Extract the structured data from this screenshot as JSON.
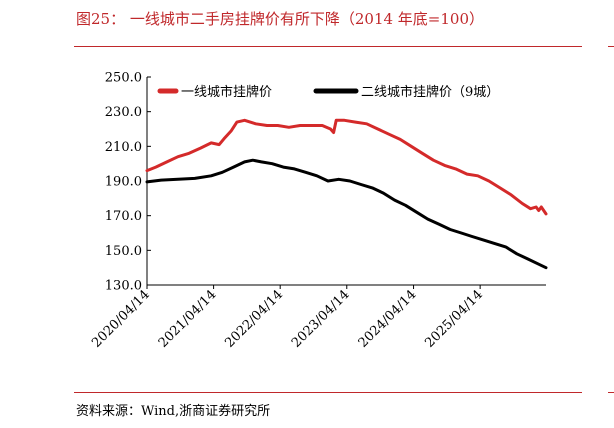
{
  "title": "图25：  一线城市二手房挂牌价有所下降（2014 年底=100）",
  "source": "资料来源：Wind,浙商证券研究所",
  "colors": {
    "accent": "#c0282b",
    "series1": "#d42a2a",
    "series2": "#000000"
  },
  "chart_data": {
    "type": "line",
    "title": "",
    "xlabel": "",
    "ylabel": "",
    "ylim": [
      130,
      250
    ],
    "yticks": [
      "250.0",
      "230.0",
      "210.0",
      "190.0",
      "170.0",
      "150.0",
      "130.0"
    ],
    "ytick_values": [
      250,
      230,
      210,
      190,
      170,
      150,
      130
    ],
    "xticks": [
      "2020/04/14",
      "2021/04/14",
      "2022/04/14",
      "2023/04/14",
      "2024/04/14",
      "2025/04/14"
    ],
    "xtick_values": [
      "2020-04-14",
      "2021-04-14",
      "2022-04-14",
      "2023-04-14",
      "2024-04-14",
      "2025-04-14"
    ],
    "xlim": [
      "2020-04-14",
      "2026-04-10"
    ],
    "grid": false,
    "legend_placement": "top",
    "series": [
      {
        "name": "一线城市挂牌价",
        "color": "#d42a2a",
        "points": [
          [
            "2020-04-14",
            196
          ],
          [
            "2020-06-01",
            198
          ],
          [
            "2020-08-01",
            201
          ],
          [
            "2020-10-01",
            204
          ],
          [
            "2020-12-01",
            206
          ],
          [
            "2021-02-01",
            209
          ],
          [
            "2021-04-01",
            212
          ],
          [
            "2021-05-15",
            211
          ],
          [
            "2021-06-15",
            215
          ],
          [
            "2021-07-20",
            219
          ],
          [
            "2021-08-20",
            224
          ],
          [
            "2021-10-01",
            225
          ],
          [
            "2021-12-01",
            223
          ],
          [
            "2022-02-01",
            222
          ],
          [
            "2022-04-01",
            222
          ],
          [
            "2022-06-01",
            221
          ],
          [
            "2022-08-01",
            222
          ],
          [
            "2022-10-01",
            222
          ],
          [
            "2022-12-01",
            222
          ],
          [
            "2023-01-15",
            220
          ],
          [
            "2023-02-01",
            218
          ],
          [
            "2023-02-15",
            225
          ],
          [
            "2023-04-01",
            225
          ],
          [
            "2023-06-01",
            224
          ],
          [
            "2023-08-01",
            223
          ],
          [
            "2023-10-01",
            220
          ],
          [
            "2023-12-01",
            217
          ],
          [
            "2024-02-01",
            214
          ],
          [
            "2024-04-01",
            210
          ],
          [
            "2024-06-01",
            206
          ],
          [
            "2024-08-01",
            202
          ],
          [
            "2024-10-01",
            199
          ],
          [
            "2024-12-01",
            197
          ],
          [
            "2025-02-01",
            194
          ],
          [
            "2025-04-01",
            193
          ],
          [
            "2025-06-01",
            190
          ],
          [
            "2025-08-01",
            186
          ],
          [
            "2025-10-01",
            182
          ],
          [
            "2025-12-01",
            177
          ],
          [
            "2026-01-15",
            174
          ],
          [
            "2026-02-15",
            175
          ],
          [
            "2026-03-01",
            173
          ],
          [
            "2026-03-15",
            175
          ],
          [
            "2026-04-10",
            171
          ]
        ]
      },
      {
        "name": "二线城市挂牌价（9城）",
        "color": "#000000",
        "points": [
          [
            "2020-04-14",
            189.5
          ],
          [
            "2020-07-01",
            190.5
          ],
          [
            "2020-10-01",
            191
          ],
          [
            "2021-01-01",
            191.5
          ],
          [
            "2021-04-01",
            193
          ],
          [
            "2021-06-01",
            195
          ],
          [
            "2021-08-01",
            198
          ],
          [
            "2021-10-01",
            201
          ],
          [
            "2021-11-15",
            202
          ],
          [
            "2022-01-01",
            201
          ],
          [
            "2022-03-01",
            200
          ],
          [
            "2022-05-01",
            198
          ],
          [
            "2022-07-01",
            197
          ],
          [
            "2022-09-01",
            195
          ],
          [
            "2022-11-01",
            193
          ],
          [
            "2023-01-01",
            190
          ],
          [
            "2023-03-01",
            191
          ],
          [
            "2023-05-01",
            190
          ],
          [
            "2023-07-01",
            188
          ],
          [
            "2023-09-01",
            186
          ],
          [
            "2023-11-01",
            183
          ],
          [
            "2024-01-01",
            179
          ],
          [
            "2024-03-01",
            176
          ],
          [
            "2024-05-01",
            172
          ],
          [
            "2024-07-01",
            168
          ],
          [
            "2024-09-01",
            165
          ],
          [
            "2024-11-01",
            162
          ],
          [
            "2025-01-01",
            160
          ],
          [
            "2025-03-01",
            158
          ],
          [
            "2025-05-01",
            156
          ],
          [
            "2025-07-01",
            154
          ],
          [
            "2025-09-01",
            152
          ],
          [
            "2025-11-01",
            148
          ],
          [
            "2026-01-01",
            145
          ],
          [
            "2026-03-01",
            142
          ],
          [
            "2026-04-10",
            140
          ]
        ]
      }
    ]
  }
}
